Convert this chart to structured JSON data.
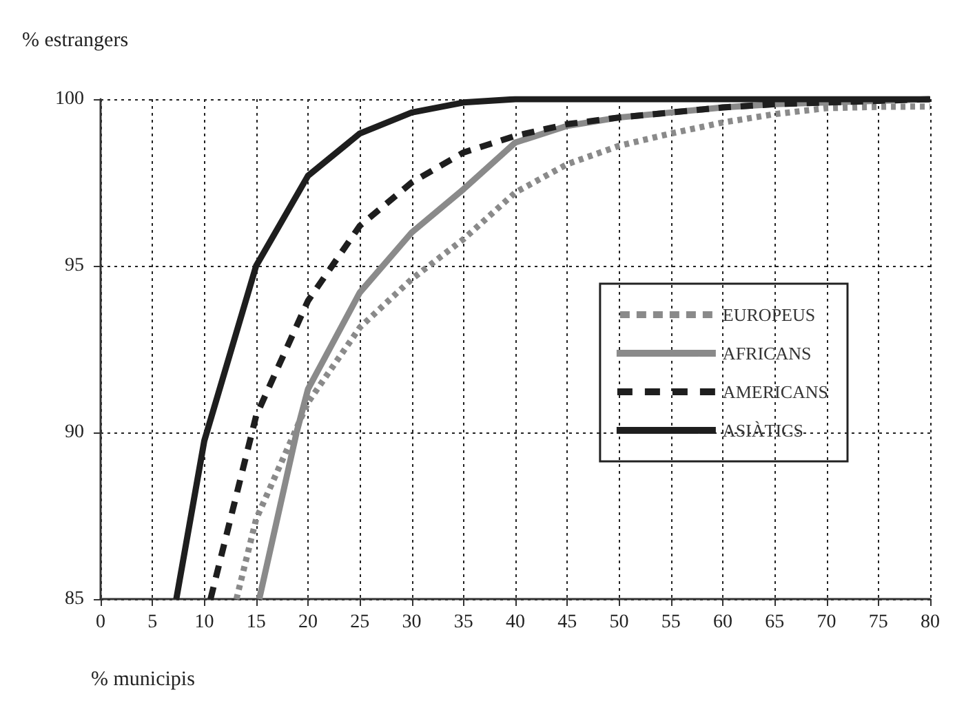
{
  "chart_data": {
    "type": "line",
    "xlabel": "% municipis",
    "ylabel": "% estrangers",
    "xlim": [
      0,
      80
    ],
    "ylim": [
      85,
      100
    ],
    "xticks": [
      0,
      5,
      10,
      15,
      20,
      25,
      30,
      35,
      40,
      45,
      50,
      55,
      60,
      65,
      70,
      75,
      80
    ],
    "yticks": [
      85,
      90,
      95,
      100
    ],
    "grid": true,
    "legend": "right",
    "marker": "none",
    "series": [
      {
        "name": "EUROPEUS",
        "color": "#8a8a8a",
        "line_style": "dotted",
        "x": [
          13.1,
          15,
          20,
          25,
          30,
          35,
          40,
          45,
          50,
          55,
          60,
          65,
          70,
          75,
          80
        ],
        "values": [
          85,
          87.4,
          90.9,
          93.15,
          94.6,
          95.8,
          97.2,
          98.05,
          98.6,
          98.97,
          99.3,
          99.55,
          99.73,
          99.77,
          99.78
        ]
      },
      {
        "name": "AFRICANS",
        "color": "#8a8a8a",
        "line_style": "solid",
        "x": [
          15.3,
          18.9,
          20,
          25,
          30,
          35,
          40,
          45,
          50,
          55,
          60,
          65,
          70,
          75,
          80
        ],
        "values": [
          85,
          90,
          91.3,
          94.2,
          96.0,
          97.3,
          98.7,
          99.2,
          99.45,
          99.6,
          99.75,
          99.85,
          99.9,
          99.95,
          100
        ]
      },
      {
        "name": "AMERICANS",
        "color": "#1e1e1e",
        "line_style": "dashed",
        "x": [
          10.6,
          15,
          20,
          25,
          30,
          35,
          40,
          45,
          50,
          55,
          60,
          65,
          70,
          75,
          80
        ],
        "values": [
          85,
          90.5,
          93.95,
          96.2,
          97.5,
          98.4,
          98.9,
          99.25,
          99.45,
          99.6,
          99.75,
          99.85,
          99.9,
          99.95,
          100
        ]
      },
      {
        "name": "ASIÀTICS",
        "color": "#1e1e1e",
        "line_style": "solid",
        "x": [
          7.3,
          10,
          15,
          20,
          25,
          30,
          35,
          40,
          50,
          60,
          70,
          80
        ],
        "values": [
          85,
          89.75,
          95.0,
          97.7,
          98.97,
          99.6,
          99.9,
          100,
          100,
          100,
          100,
          100
        ]
      }
    ]
  }
}
